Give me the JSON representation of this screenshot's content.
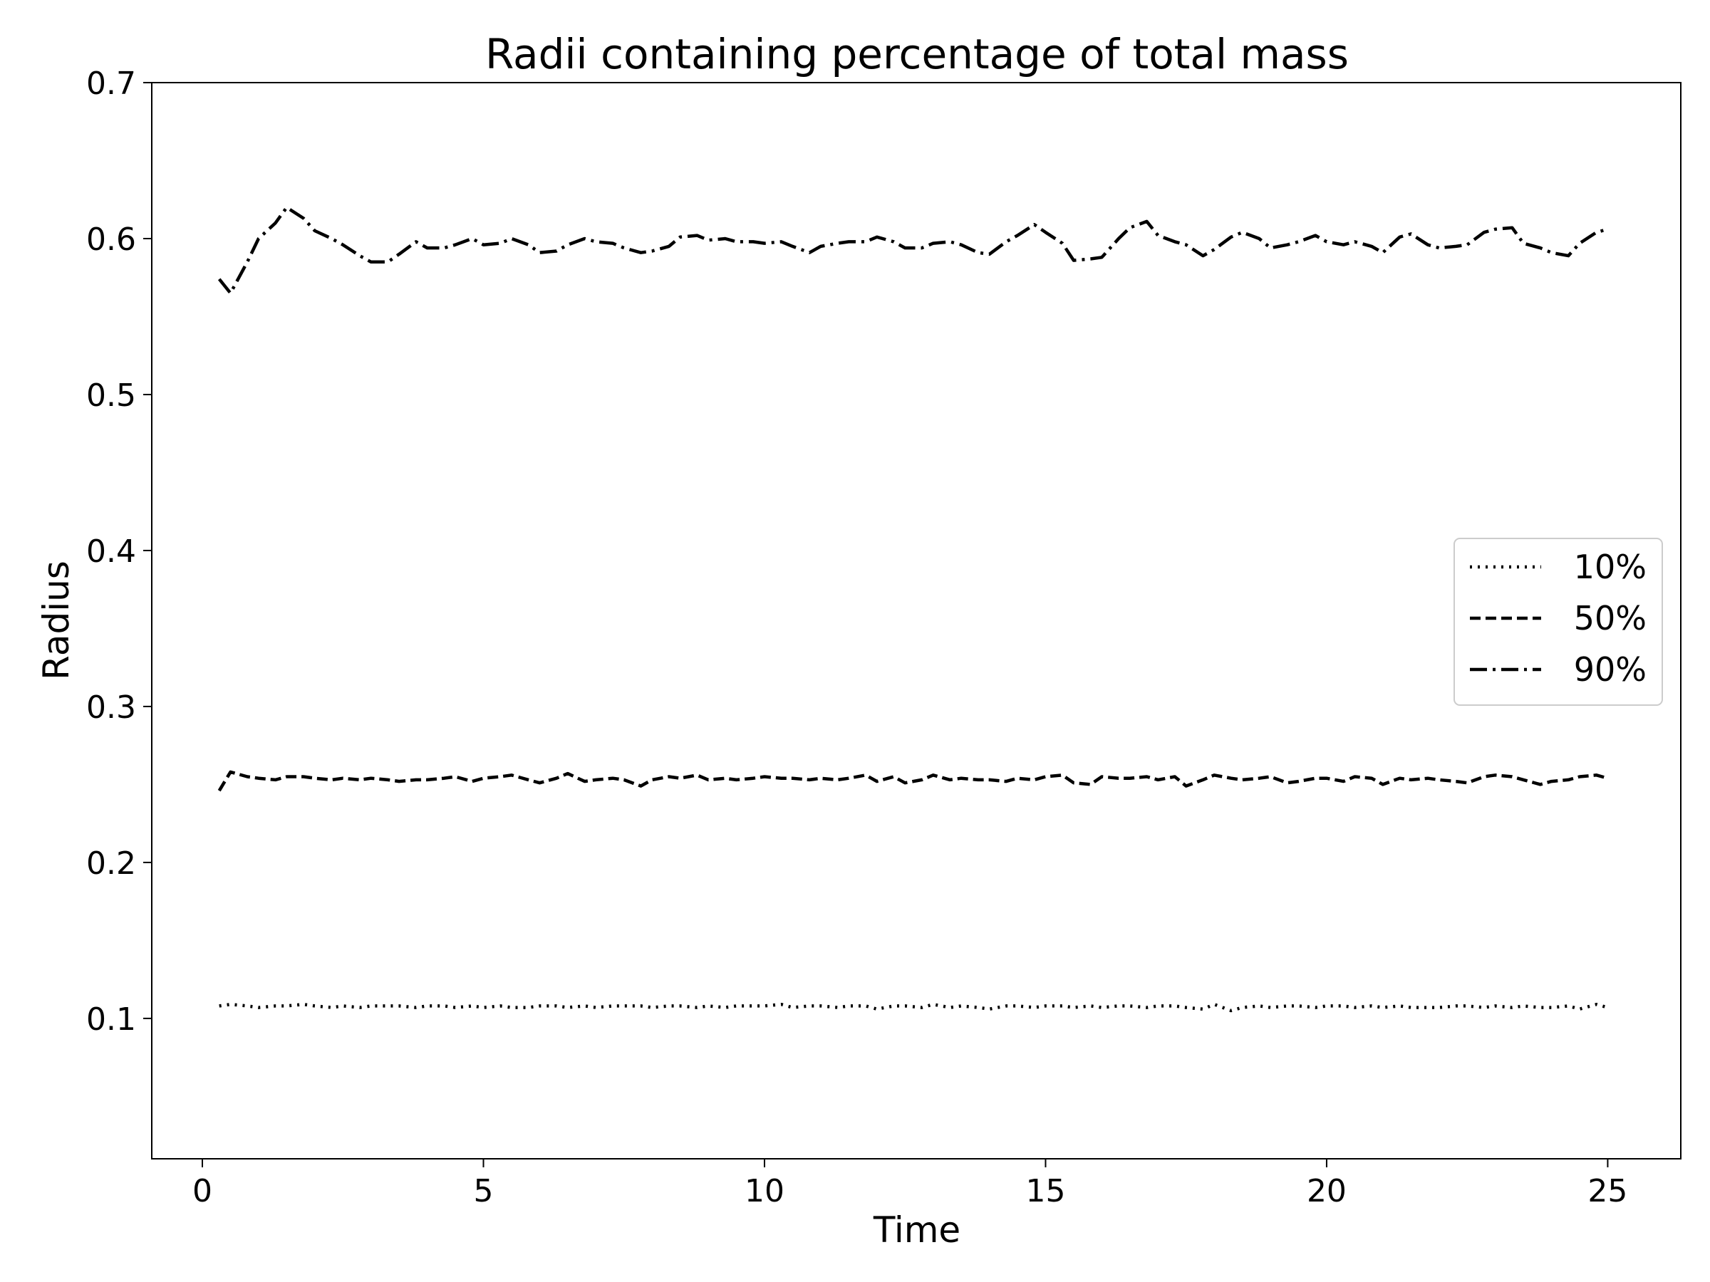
{
  "chart_data": {
    "type": "line",
    "title": "Radii containing percentage of total mass",
    "xlabel": "Time",
    "ylabel": "Radius",
    "xlim": [
      -0.9,
      26.3
    ],
    "ylim": [
      0.01,
      0.7
    ],
    "xticks": [
      0,
      5,
      10,
      15,
      20,
      25
    ],
    "xtick_labels": [
      "0",
      "5",
      "10",
      "15",
      "20",
      "25"
    ],
    "yticks": [
      0.1,
      0.2,
      0.3,
      0.4,
      0.5,
      0.6,
      0.7
    ],
    "ytick_labels": [
      "0.1",
      "0.2",
      "0.3",
      "0.4",
      "0.5",
      "0.6",
      "0.7"
    ],
    "grid": false,
    "legend_position": "center-right",
    "x": [
      0.3,
      0.5,
      0.8,
      1.0,
      1.3,
      1.5,
      1.8,
      2.0,
      2.3,
      2.5,
      2.8,
      3.0,
      3.3,
      3.5,
      3.8,
      4.0,
      4.3,
      4.5,
      4.8,
      5.0,
      5.3,
      5.5,
      5.8,
      6.0,
      6.3,
      6.5,
      6.8,
      7.0,
      7.3,
      7.5,
      7.8,
      8.0,
      8.3,
      8.5,
      8.8,
      9.0,
      9.3,
      9.5,
      9.8,
      10.0,
      10.3,
      10.5,
      10.8,
      11.0,
      11.3,
      11.5,
      11.8,
      12.0,
      12.3,
      12.5,
      12.8,
      13.0,
      13.3,
      13.5,
      13.8,
      14.0,
      14.3,
      14.5,
      14.8,
      15.0,
      15.3,
      15.5,
      15.8,
      16.0,
      16.3,
      16.5,
      16.8,
      17.0,
      17.3,
      17.5,
      17.8,
      18.0,
      18.3,
      18.5,
      18.8,
      19.0,
      19.3,
      19.5,
      19.8,
      20.0,
      20.3,
      20.5,
      20.8,
      21.0,
      21.3,
      21.5,
      21.8,
      22.0,
      22.3,
      22.5,
      22.8,
      23.0,
      23.3,
      23.5,
      23.8,
      24.0,
      24.3,
      24.5,
      24.8,
      25.0
    ],
    "series": [
      {
        "name": "10%",
        "line_style": "dotted",
        "color": "#000000",
        "values": [
          0.108,
          0.109,
          0.108,
          0.107,
          0.108,
          0.108,
          0.109,
          0.108,
          0.107,
          0.108,
          0.107,
          0.108,
          0.108,
          0.108,
          0.107,
          0.108,
          0.108,
          0.107,
          0.108,
          0.107,
          0.108,
          0.107,
          0.107,
          0.108,
          0.108,
          0.107,
          0.108,
          0.107,
          0.108,
          0.108,
          0.108,
          0.107,
          0.108,
          0.108,
          0.107,
          0.108,
          0.107,
          0.108,
          0.108,
          0.108,
          0.109,
          0.107,
          0.108,
          0.108,
          0.107,
          0.108,
          0.108,
          0.106,
          0.108,
          0.108,
          0.107,
          0.109,
          0.107,
          0.108,
          0.107,
          0.106,
          0.108,
          0.108,
          0.107,
          0.108,
          0.108,
          0.107,
          0.108,
          0.107,
          0.108,
          0.108,
          0.107,
          0.108,
          0.108,
          0.107,
          0.106,
          0.109,
          0.105,
          0.107,
          0.108,
          0.107,
          0.108,
          0.108,
          0.107,
          0.108,
          0.108,
          0.107,
          0.108,
          0.107,
          0.108,
          0.107,
          0.107,
          0.107,
          0.108,
          0.108,
          0.107,
          0.108,
          0.107,
          0.108,
          0.107,
          0.107,
          0.108,
          0.106,
          0.109,
          0.107
        ]
      },
      {
        "name": "50%",
        "line_style": "dashed",
        "color": "#000000",
        "values": [
          0.246,
          0.258,
          0.255,
          0.254,
          0.253,
          0.255,
          0.255,
          0.254,
          0.253,
          0.254,
          0.253,
          0.254,
          0.253,
          0.252,
          0.253,
          0.253,
          0.254,
          0.255,
          0.252,
          0.254,
          0.255,
          0.256,
          0.253,
          0.251,
          0.254,
          0.257,
          0.252,
          0.253,
          0.254,
          0.253,
          0.249,
          0.253,
          0.255,
          0.254,
          0.256,
          0.253,
          0.254,
          0.253,
          0.254,
          0.255,
          0.254,
          0.254,
          0.253,
          0.254,
          0.253,
          0.254,
          0.256,
          0.252,
          0.255,
          0.251,
          0.253,
          0.256,
          0.253,
          0.254,
          0.253,
          0.253,
          0.252,
          0.254,
          0.253,
          0.255,
          0.256,
          0.251,
          0.25,
          0.255,
          0.254,
          0.254,
          0.255,
          0.253,
          0.255,
          0.249,
          0.253,
          0.256,
          0.254,
          0.253,
          0.254,
          0.255,
          0.251,
          0.252,
          0.254,
          0.254,
          0.252,
          0.255,
          0.254,
          0.25,
          0.254,
          0.253,
          0.254,
          0.253,
          0.252,
          0.251,
          0.255,
          0.256,
          0.255,
          0.253,
          0.25,
          0.252,
          0.253,
          0.255,
          0.256,
          0.254
        ]
      },
      {
        "name": "90%",
        "line_style": "dashdot",
        "color": "#000000",
        "values": [
          0.574,
          0.565,
          0.585,
          0.6,
          0.61,
          0.62,
          0.613,
          0.605,
          0.6,
          0.596,
          0.589,
          0.585,
          0.585,
          0.59,
          0.598,
          0.594,
          0.594,
          0.596,
          0.6,
          0.596,
          0.597,
          0.6,
          0.596,
          0.591,
          0.592,
          0.596,
          0.6,
          0.598,
          0.597,
          0.594,
          0.591,
          0.592,
          0.595,
          0.601,
          0.602,
          0.599,
          0.6,
          0.598,
          0.598,
          0.597,
          0.598,
          0.595,
          0.591,
          0.595,
          0.597,
          0.598,
          0.598,
          0.601,
          0.598,
          0.594,
          0.594,
          0.597,
          0.598,
          0.596,
          0.591,
          0.59,
          0.598,
          0.602,
          0.609,
          0.604,
          0.597,
          0.586,
          0.587,
          0.588,
          0.6,
          0.607,
          0.611,
          0.602,
          0.598,
          0.596,
          0.589,
          0.593,
          0.601,
          0.604,
          0.6,
          0.594,
          0.596,
          0.598,
          0.602,
          0.598,
          0.596,
          0.598,
          0.595,
          0.591,
          0.601,
          0.603,
          0.596,
          0.594,
          0.595,
          0.596,
          0.604,
          0.606,
          0.607,
          0.597,
          0.594,
          0.591,
          0.589,
          0.597,
          0.604,
          0.606
        ]
      }
    ]
  }
}
